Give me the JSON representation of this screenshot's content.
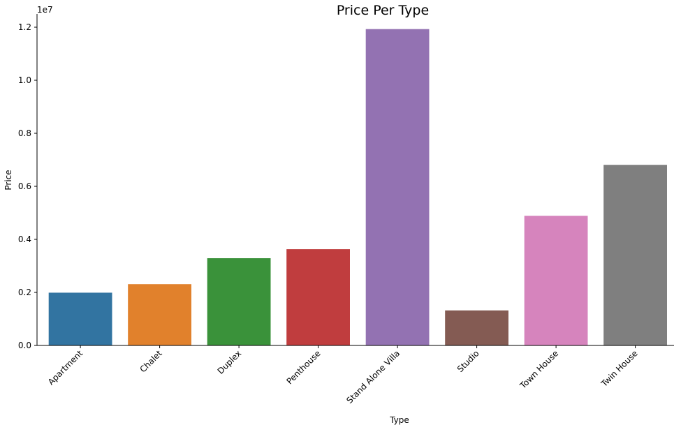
{
  "chart_data": {
    "type": "bar",
    "title": "Price Per Type",
    "xlabel": "Type",
    "ylabel": "Price",
    "y_scale_label": "1e7",
    "ylim": [
      0,
      1.25
    ],
    "yticks": [
      0.0,
      0.2,
      0.4,
      0.6,
      0.8,
      1.0,
      1.2
    ],
    "ytick_labels": [
      "0.0",
      "0.2",
      "0.4",
      "0.6",
      "0.8",
      "1.0",
      "1.2"
    ],
    "grid": false,
    "categories": [
      "Apartment",
      "Chalet",
      "Duplex",
      "Penthouse",
      "Stand Alone Villa",
      "Studio",
      "Town House",
      "Twin House"
    ],
    "values": [
      0.199,
      0.231,
      0.329,
      0.363,
      1.193,
      0.132,
      0.489,
      0.681
    ],
    "colors": [
      "#3274a1",
      "#e1812c",
      "#3a923a",
      "#c03d3e",
      "#9372b2",
      "#845b53",
      "#d684bd",
      "#7f7f7f"
    ]
  }
}
